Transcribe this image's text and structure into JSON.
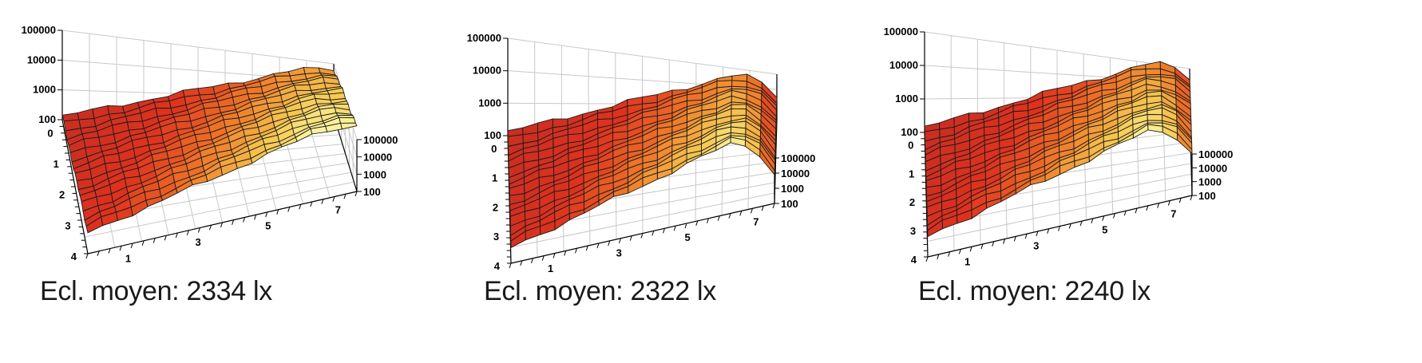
{
  "chart_data": [
    {
      "type": "surface",
      "caption": "Ecl. moyen: 2334 lx",
      "x_ticks": [
        "0",
        "1",
        "2",
        "3",
        "4"
      ],
      "y_ticks": [
        "1",
        "3",
        "5",
        "7"
      ],
      "z_ticks_left": [
        "100",
        "1000",
        "10000",
        "100000"
      ],
      "z_ticks_right": [
        "100",
        "1000",
        "10000",
        "100000"
      ],
      "z_scale": "log",
      "zlim": [
        100,
        100000
      ],
      "z_corners": {
        "near_front": 130,
        "near_back": 6000,
        "far_front": 500,
        "far_back": 35000
      },
      "ridge_drop": 0.35
    },
    {
      "type": "surface",
      "caption": "Ecl. moyen: 2322 lx",
      "x_ticks": [
        "0",
        "1",
        "2",
        "3",
        "4"
      ],
      "y_ticks": [
        "1",
        "3",
        "5",
        "7"
      ],
      "z_ticks_left": [
        "100",
        "1000",
        "10000",
        "100000"
      ],
      "z_ticks_right": [
        "100",
        "1000",
        "10000",
        "100000"
      ],
      "z_scale": "log",
      "zlim": [
        100,
        100000
      ],
      "z_corners": {
        "near_front": 130,
        "near_back": 5000,
        "far_front": 300,
        "far_back": 30000
      },
      "ridge_drop": 1.6
    },
    {
      "type": "surface",
      "caption": "Ecl. moyen: 2240 lx",
      "x_ticks": [
        "0",
        "1",
        "2",
        "3",
        "4"
      ],
      "y_ticks": [
        "1",
        "3",
        "5",
        "7"
      ],
      "z_ticks_left": [
        "100",
        "1000",
        "10000",
        "100000"
      ],
      "z_ticks_right": [
        "100",
        "1000",
        "10000",
        "100000"
      ],
      "z_scale": "log",
      "zlim": [
        100,
        100000
      ],
      "z_corners": {
        "near_front": 140,
        "near_back": 5500,
        "far_front": 400,
        "far_back": 35000
      },
      "ridge_drop": 1.3
    }
  ]
}
